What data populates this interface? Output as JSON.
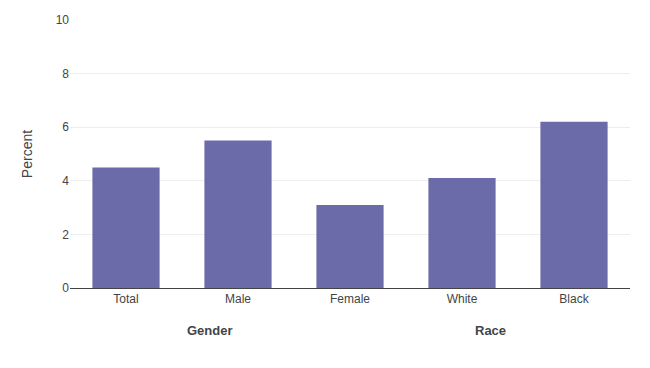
{
  "chart_data": {
    "type": "bar",
    "categories": [
      "Total",
      "Male",
      "Female",
      "White",
      "Black"
    ],
    "values": [
      4.5,
      5.5,
      3.1,
      4.1,
      6.2
    ],
    "color": "#6b6baa",
    "ylabel": "Percent",
    "ylim": [
      0,
      10
    ],
    "yticks": [
      0,
      2,
      4,
      6,
      8,
      10
    ],
    "grid": true,
    "annotations": [
      "Gender",
      "Race"
    ]
  }
}
